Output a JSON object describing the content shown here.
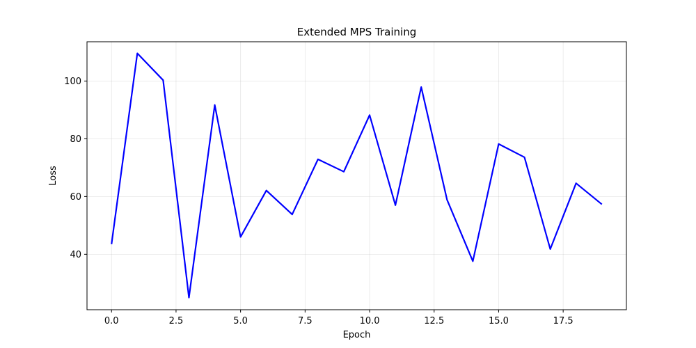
{
  "chart_data": {
    "type": "line",
    "title": "Extended MPS Training",
    "xlabel": "Epoch",
    "ylabel": "Loss",
    "xlim": [
      -0.95,
      19.95
    ],
    "ylim": [
      20.8,
      113.6
    ],
    "xticks": [
      0.0,
      2.5,
      5.0,
      7.5,
      10.0,
      12.5,
      15.0,
      17.5
    ],
    "xtick_labels": [
      "0.0",
      "2.5",
      "5.0",
      "7.5",
      "10.0",
      "12.5",
      "15.0",
      "17.5"
    ],
    "yticks": [
      40,
      60,
      80,
      100
    ],
    "ytick_labels": [
      "40",
      "60",
      "80",
      "100"
    ],
    "grid": true,
    "series": [
      {
        "color": "#0000ff",
        "x": [
          0,
          1,
          2,
          3,
          4,
          5,
          6,
          7,
          8,
          9,
          10,
          11,
          12,
          13,
          14,
          15,
          16,
          17,
          18,
          19
        ],
        "y": [
          43.5,
          109.6,
          100.3,
          25.0,
          91.7,
          46.0,
          62.1,
          53.8,
          72.9,
          68.6,
          88.2,
          57.0,
          97.9,
          58.9,
          37.6,
          78.2,
          73.6,
          41.8,
          64.6,
          57.3
        ]
      }
    ]
  }
}
